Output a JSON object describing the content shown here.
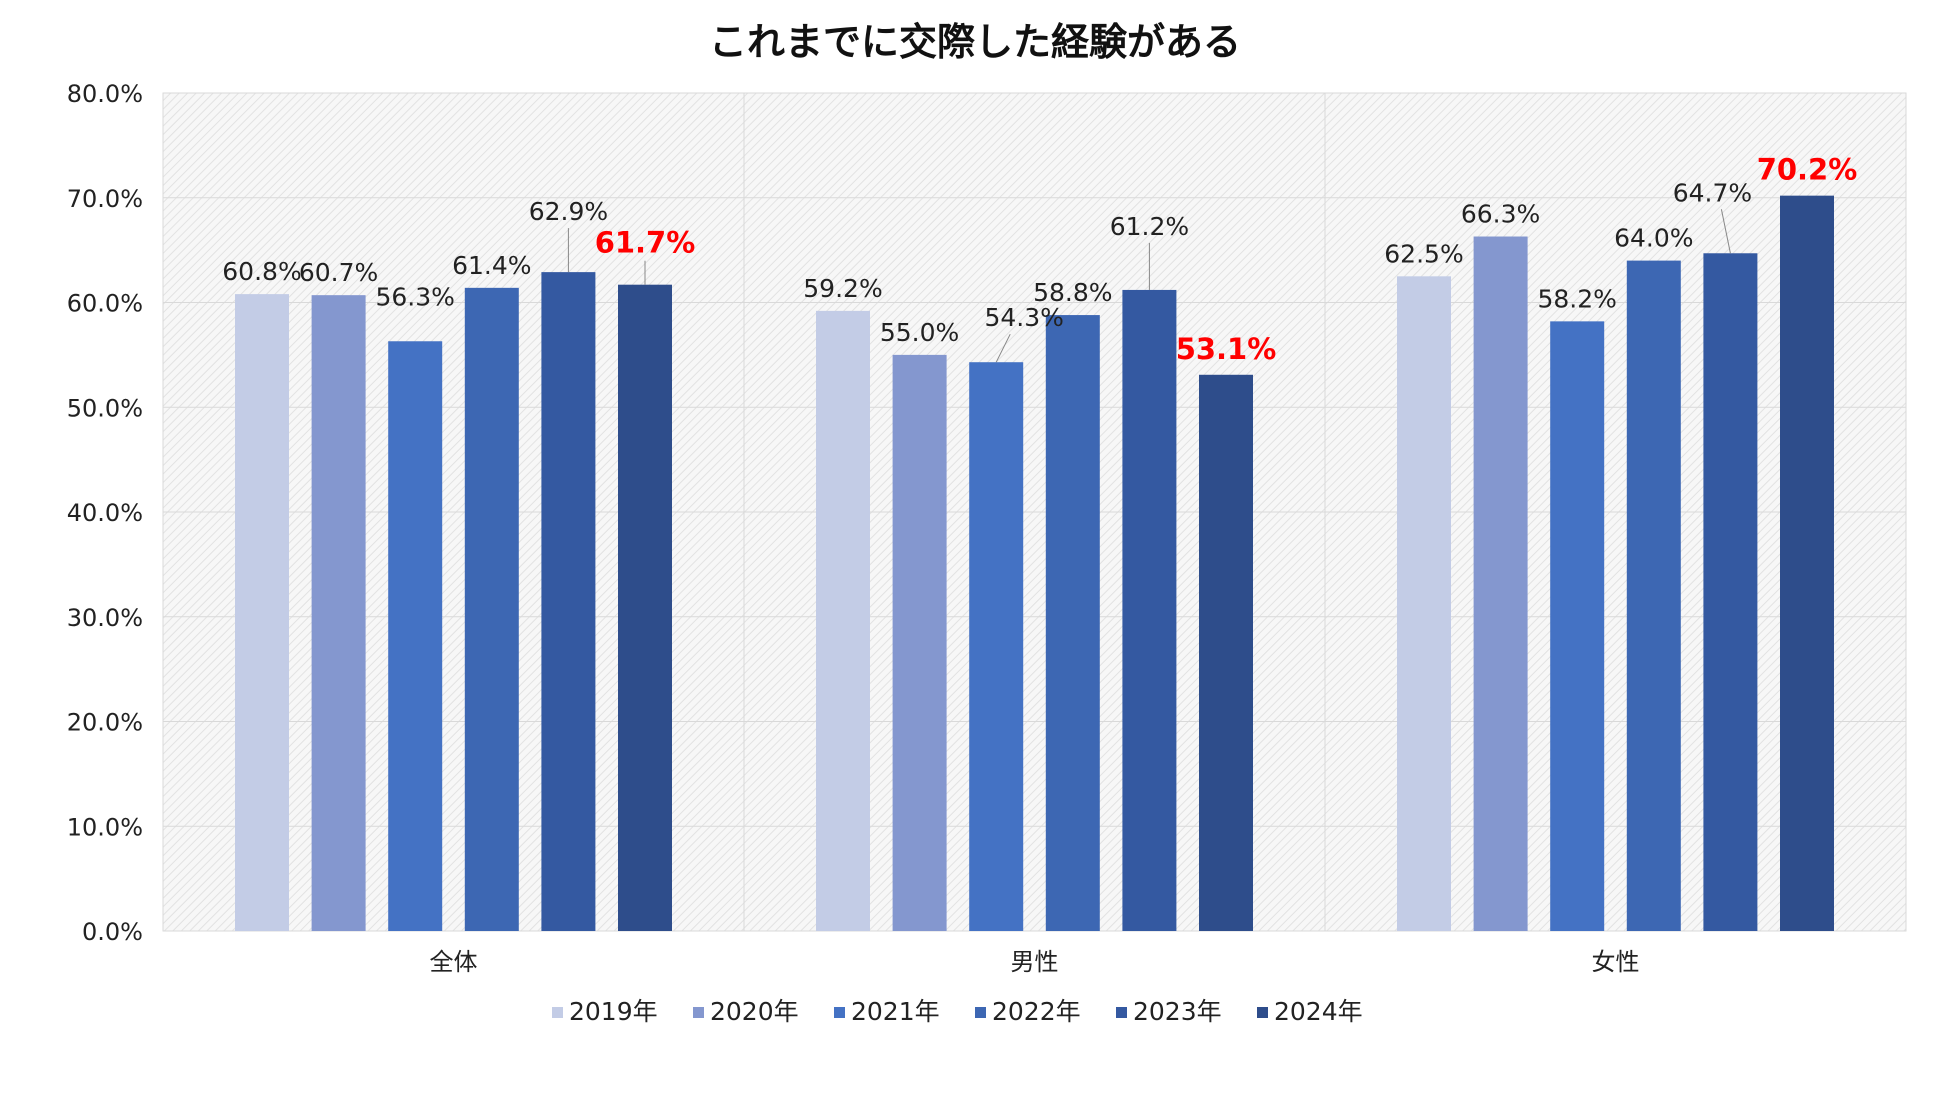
{
  "chart_data": {
    "type": "bar",
    "title": "これまでに交際した経験がある",
    "categories": [
      "全体",
      "男性",
      "女性"
    ],
    "series": [
      {
        "name": "2019年",
        "color": "#c3cce6",
        "values": [
          60.8,
          59.2,
          62.5
        ]
      },
      {
        "name": "2020年",
        "color": "#8497cf",
        "values": [
          60.7,
          55.0,
          66.3
        ]
      },
      {
        "name": "2021年",
        "color": "#4472c4",
        "values": [
          56.3,
          54.3,
          58.2
        ]
      },
      {
        "name": "2022年",
        "color": "#3d67b3",
        "values": [
          61.4,
          58.8,
          64.0
        ]
      },
      {
        "name": "2023年",
        "color": "#3459a1",
        "values": [
          62.9,
          61.2,
          64.7
        ]
      },
      {
        "name": "2024年",
        "color": "#2e4d8b",
        "values": [
          61.7,
          53.1,
          70.2
        ]
      }
    ],
    "value_labels": [
      [
        "60.8%",
        "59.2%",
        "62.5%"
      ],
      [
        "60.7%",
        "55.0%",
        "66.3%"
      ],
      [
        "56.3%",
        "54.3%",
        "58.2%"
      ],
      [
        "61.4%",
        "58.8%",
        "64.0%"
      ],
      [
        "62.9%",
        "61.2%",
        "64.7%"
      ],
      [
        "61.7%",
        "53.1%",
        "70.2%"
      ]
    ],
    "highlight_series": "2024年",
    "highlight_color": "#ff0000",
    "ylim": [
      0,
      80
    ],
    "ytick_labels": [
      "0.0%",
      "10.0%",
      "20.0%",
      "30.0%",
      "40.0%",
      "50.0%",
      "60.0%",
      "70.0%",
      "80.0%"
    ],
    "xlabel": "",
    "ylabel": "",
    "grid": true,
    "legend_position": "bottom-center"
  }
}
